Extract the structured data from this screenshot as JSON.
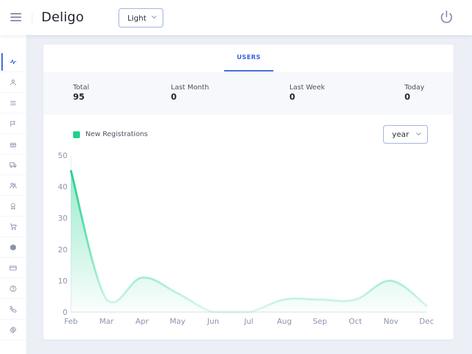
{
  "header": {
    "menu_icon": "hamburger-icon",
    "brand": "Deligo",
    "theme_select": {
      "value": "Light"
    },
    "power_icon": "power-icon"
  },
  "sidebar": {
    "items": [
      {
        "name": "activity",
        "icon": "activity-icon",
        "active": true
      },
      {
        "name": "user",
        "icon": "user-icon",
        "active": false
      },
      {
        "name": "list",
        "icon": "list-icon",
        "active": false
      },
      {
        "name": "flag",
        "icon": "flag-icon",
        "active": false
      },
      {
        "name": "gift",
        "icon": "gift-icon",
        "active": false
      },
      {
        "name": "truck",
        "icon": "truck-icon",
        "active": false
      },
      {
        "name": "users",
        "icon": "users-icon",
        "active": false
      },
      {
        "name": "badge",
        "icon": "badge-icon",
        "active": false
      },
      {
        "name": "cart",
        "icon": "cart-icon",
        "active": false
      },
      {
        "name": "package",
        "icon": "package-icon",
        "active": false
      },
      {
        "name": "credit-card",
        "icon": "credit-card-icon",
        "active": false
      },
      {
        "name": "help",
        "icon": "help-circle-icon",
        "active": false
      },
      {
        "name": "phone",
        "icon": "phone-icon",
        "active": false
      },
      {
        "name": "settings",
        "icon": "settings-icon",
        "active": false
      }
    ]
  },
  "card": {
    "tab": "USERS",
    "stats": [
      {
        "label": "Total",
        "value": "95"
      },
      {
        "label": "Last Month",
        "value": "0"
      },
      {
        "label": "Last Week",
        "value": "0"
      },
      {
        "label": "Today",
        "value": "0"
      }
    ],
    "legend": "New Registrations",
    "period_select": {
      "value": "year"
    }
  },
  "colors": {
    "accent": "#3e63dd",
    "series": "#1fd18e",
    "background": "#eceff6"
  },
  "chart_data": {
    "type": "area",
    "title": "",
    "xlabel": "",
    "ylabel": "",
    "categories": [
      "Feb",
      "Mar",
      "Apr",
      "May",
      "Jun",
      "Jul",
      "Aug",
      "Sep",
      "Oct",
      "Nov",
      "Dec"
    ],
    "series": [
      {
        "name": "New Registrations",
        "values": [
          45,
          4,
          11,
          6,
          0,
          0,
          4,
          4,
          4,
          10,
          2
        ],
        "color": "#1fd18e"
      }
    ],
    "yticks": [
      0,
      10,
      20,
      30,
      40,
      50
    ],
    "ylim": [
      0,
      50
    ],
    "grid": false,
    "legend_position": "top-left"
  }
}
